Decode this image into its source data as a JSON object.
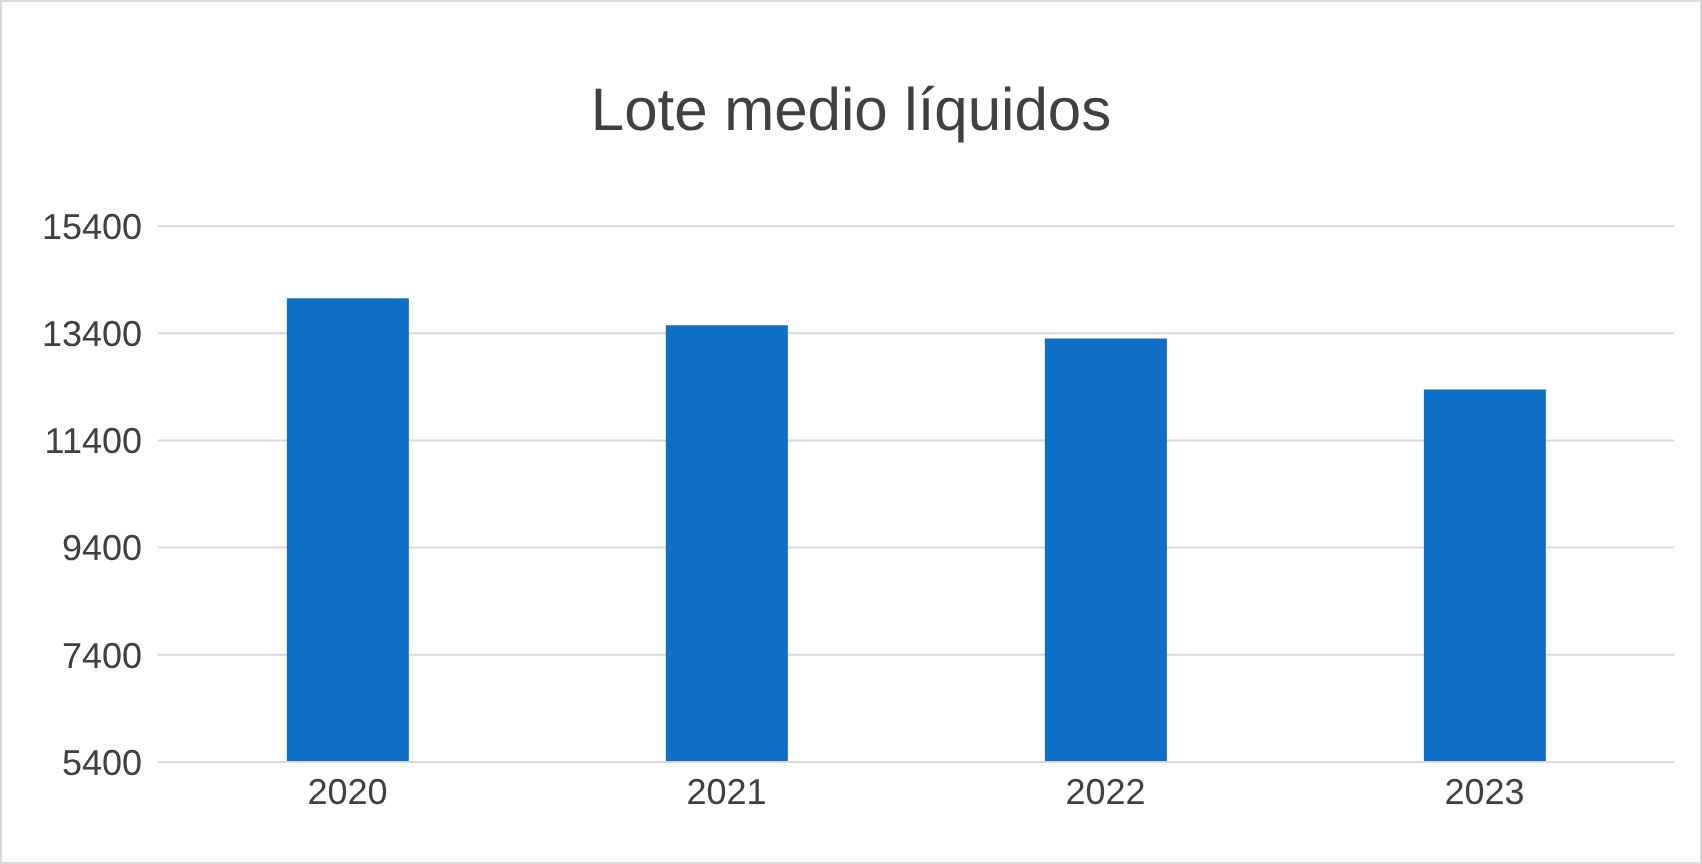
{
  "chart_data": {
    "type": "bar",
    "title": "Lote medio líquidos",
    "categories": [
      "2020",
      "2021",
      "2022",
      "2023"
    ],
    "values": [
      14050,
      13550,
      13300,
      12350
    ],
    "color": "#0f6fc6",
    "ylim": [
      5400,
      15400
    ],
    "yticks": [
      5400,
      7400,
      9400,
      11400,
      13400,
      15400
    ],
    "grid": "y"
  }
}
